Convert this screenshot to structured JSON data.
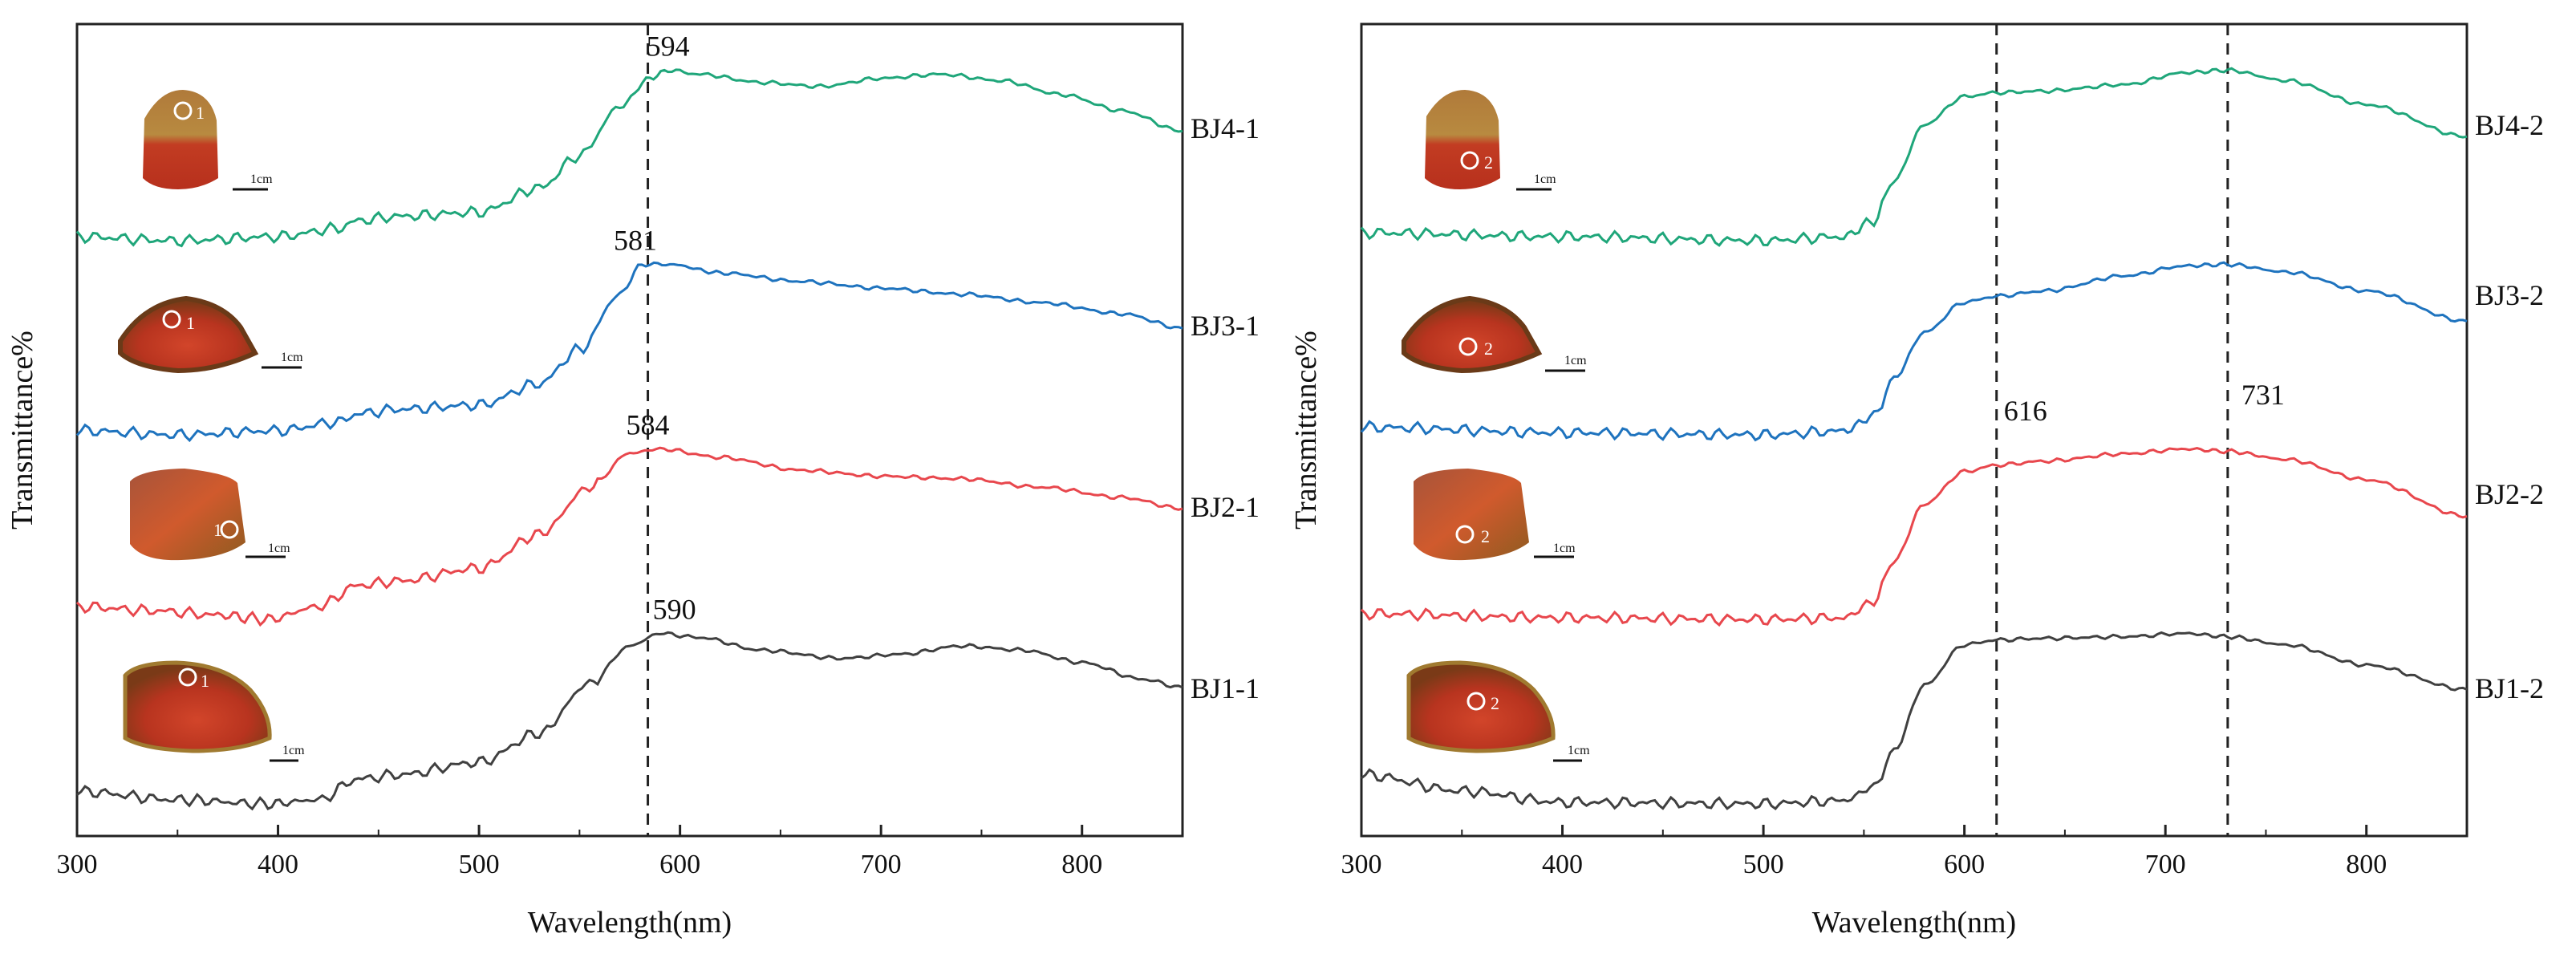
{
  "chart_data": [
    {
      "type": "line",
      "panel": "left",
      "xlabel": "Wavelength(nm)",
      "ylabel": "Transmittance%",
      "xlim": [
        300,
        850
      ],
      "ylim": [
        0,
        100
      ],
      "x_ticks": [
        300,
        400,
        500,
        600,
        700,
        800
      ],
      "reference_lines": [
        584
      ],
      "series": [
        {
          "name": "BJ4-1",
          "color": "#1fa67a",
          "spot": "1",
          "scale_bar": "1cm",
          "peak_label": "594",
          "peak_x": 594,
          "x": [
            300,
            350,
            400,
            430,
            440,
            460,
            500,
            530,
            550,
            570,
            585,
            594,
            610,
            640,
            670,
            700,
            730,
            760,
            790,
            820,
            850
          ],
          "y": [
            76,
            75.5,
            76,
            77,
            78,
            78.5,
            79,
            82,
            86,
            92,
            95.5,
            96.5,
            96,
            95,
            94.5,
            95.5,
            96,
            95.2,
            93.5,
            91.5,
            89
          ]
        },
        {
          "name": "BJ3-1",
          "color": "#1e73be",
          "spot": "1",
          "scale_bar": "1cm",
          "peak_label": "581",
          "peak_x": 581,
          "x": [
            300,
            350,
            400,
            430,
            440,
            460,
            500,
            530,
            550,
            570,
            581,
            595,
            620,
            660,
            700,
            740,
            780,
            820,
            850
          ],
          "y": [
            52.5,
            52,
            52.5,
            53.5,
            54.5,
            55,
            55.5,
            58,
            62,
            68.5,
            72,
            72,
            71,
            70,
            69.2,
            68.5,
            67.5,
            66.2,
            64.5
          ]
        },
        {
          "name": "BJ2-1",
          "color": "#e8474d",
          "spot": "1",
          "scale_bar": "1cm",
          "peak_label": "584",
          "peak_x": 584,
          "x": [
            300,
            340,
            370,
            395,
            420,
            440,
            460,
            500,
            530,
            555,
            575,
            590,
            620,
            660,
            700,
            740,
            780,
            820,
            850
          ],
          "y": [
            30.5,
            30,
            29.5,
            29,
            30.5,
            33,
            33.5,
            35,
            39,
            44.5,
            48.5,
            49,
            48,
            46.5,
            45.8,
            45.5,
            44.5,
            43.3,
            42
          ]
        },
        {
          "name": "BJ1-1",
          "color": "#404040",
          "spot": "1",
          "scale_bar": "1cm",
          "peak_label": "590",
          "peak_x": 590,
          "x": [
            300,
            350,
            395,
            420,
            440,
            460,
            500,
            530,
            555,
            575,
            590,
            610,
            640,
            680,
            710,
            740,
            770,
            800,
            830,
            850
          ],
          "y": [
            7,
            6,
            5.5,
            6,
            8.5,
            9,
            10.5,
            14,
            20,
            24.5,
            26,
            25.5,
            24,
            23,
            23.5,
            24.5,
            24,
            22.5,
            20.5,
            19.5
          ]
        }
      ]
    },
    {
      "type": "line",
      "panel": "right",
      "xlabel": "Wavelength(nm)",
      "ylabel": "Transmittance%",
      "xlim": [
        300,
        850
      ],
      "ylim": [
        0,
        100
      ],
      "x_ticks": [
        300,
        400,
        500,
        600,
        700,
        800
      ],
      "reference_lines": [
        616,
        731
      ],
      "series": [
        {
          "name": "BJ4-2",
          "color": "#1fa67a",
          "spot": "2",
          "scale_bar": "1cm",
          "x": [
            300,
            400,
            500,
            540,
            555,
            565,
            580,
            600,
            616,
            640,
            680,
            710,
            731,
            760,
            800,
            850
          ],
          "y": [
            76.5,
            76,
            75.5,
            76,
            78,
            83,
            90,
            93.5,
            94,
            94.2,
            95,
            96.5,
            96.8,
            95.5,
            92.5,
            88.5
          ]
        },
        {
          "name": "BJ3-2",
          "color": "#1e73be",
          "spot": "2",
          "scale_bar": "1cm",
          "x": [
            300,
            400,
            500,
            540,
            555,
            565,
            580,
            600,
            616,
            640,
            680,
            710,
            731,
            760,
            800,
            850
          ],
          "y": [
            52.5,
            51.8,
            51.5,
            52,
            54,
            59,
            65,
            69,
            69.8,
            70.5,
            72.5,
            73.8,
            74,
            73,
            70.5,
            66.5
          ]
        },
        {
          "name": "BJ2-2",
          "color": "#e8474d",
          "spot": "2",
          "scale_bar": "1cm",
          "peak_labels": [
            "616",
            "731"
          ],
          "x": [
            300,
            400,
            500,
            540,
            555,
            565,
            580,
            600,
            616,
            640,
            680,
            710,
            731,
            760,
            800,
            850
          ],
          "y": [
            29.5,
            29,
            28.8,
            29,
            31,
            36,
            43,
            47,
            47.8,
            48.3,
            49.2,
            49.8,
            49.5,
            48.5,
            46,
            41.5
          ]
        },
        {
          "name": "BJ1-2",
          "color": "#404040",
          "spot": "2",
          "scale_bar": "1cm",
          "x": [
            300,
            350,
            400,
            500,
            540,
            555,
            565,
            580,
            600,
            616,
            640,
            680,
            710,
            731,
            760,
            800,
            850
          ],
          "y": [
            9,
            7,
            5.6,
            5.4,
            5.8,
            7.5,
            12,
            20,
            25,
            25.6,
            25.8,
            26,
            26.4,
            26,
            25,
            22.5,
            19.5
          ]
        }
      ]
    }
  ]
}
